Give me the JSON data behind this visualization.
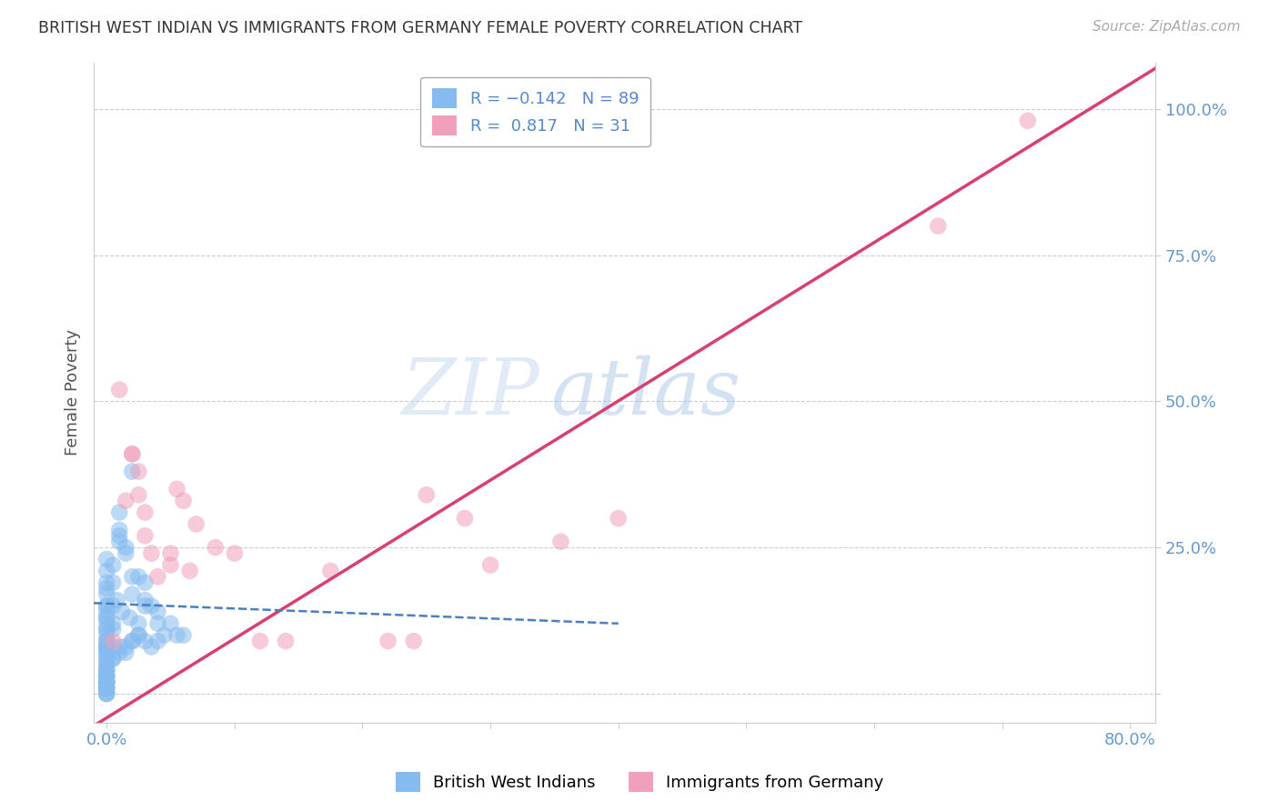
{
  "title": "BRITISH WEST INDIAN VS IMMIGRANTS FROM GERMANY FEMALE POVERTY CORRELATION CHART",
  "source": "Source: ZipAtlas.com",
  "ylabel_label": "Female Poverty",
  "xlim": [
    -0.01,
    0.82
  ],
  "ylim": [
    -0.05,
    1.08
  ],
  "x_ticks": [
    0.0,
    0.1,
    0.2,
    0.3,
    0.4,
    0.5,
    0.6,
    0.7,
    0.8
  ],
  "y_ticks": [
    0.0,
    0.25,
    0.5,
    0.75,
    1.0
  ],
  "y_tick_labels": [
    "",
    "25.0%",
    "50.0%",
    "75.0%",
    "100.0%"
  ],
  "watermark_zip": "ZIP",
  "watermark_atlas": "atlas",
  "blue_scatter_color": "#85bbf0",
  "pink_scatter_color": "#f0a0b8",
  "blue_line_color": "#4a7fc0",
  "pink_line_color": "#d84070",
  "axis_color": "#6699cc",
  "grid_color": "#cccccc",
  "title_color": "#333333",
  "source_color": "#aaaaaa",
  "background_color": "#ffffff",
  "blue_points_x": [
    0.0,
    0.0,
    0.0,
    0.0,
    0.0,
    0.0,
    0.0,
    0.0,
    0.0,
    0.0,
    0.0,
    0.0,
    0.0,
    0.0,
    0.0,
    0.0,
    0.0,
    0.0,
    0.0,
    0.0,
    0.0,
    0.0,
    0.0,
    0.0,
    0.0,
    0.0,
    0.0,
    0.0,
    0.0,
    0.0,
    0.0,
    0.0,
    0.0,
    0.0,
    0.0,
    0.005,
    0.005,
    0.005,
    0.005,
    0.005,
    0.005,
    0.008,
    0.01,
    0.01,
    0.01,
    0.01,
    0.01,
    0.012,
    0.015,
    0.015,
    0.015,
    0.018,
    0.02,
    0.02,
    0.02,
    0.02,
    0.025,
    0.025,
    0.025,
    0.03,
    0.03,
    0.03,
    0.03,
    0.035,
    0.035,
    0.04,
    0.04,
    0.04,
    0.045,
    0.05,
    0.055,
    0.06,
    0.0,
    0.0,
    0.0,
    0.0,
    0.0,
    0.0,
    0.0,
    0.0,
    0.0,
    0.005,
    0.005,
    0.01,
    0.015,
    0.02,
    0.025
  ],
  "blue_points_y": [
    0.18,
    0.15,
    0.14,
    0.13,
    0.12,
    0.11,
    0.1,
    0.09,
    0.09,
    0.08,
    0.08,
    0.07,
    0.07,
    0.06,
    0.06,
    0.05,
    0.05,
    0.04,
    0.04,
    0.03,
    0.03,
    0.02,
    0.02,
    0.01,
    0.01,
    0.0,
    0.0,
    0.0,
    0.01,
    0.02,
    0.03,
    0.02,
    0.01,
    0.02,
    0.03,
    0.22,
    0.19,
    0.15,
    0.12,
    0.08,
    0.06,
    0.16,
    0.31,
    0.28,
    0.27,
    0.26,
    0.08,
    0.14,
    0.25,
    0.24,
    0.07,
    0.13,
    0.38,
    0.2,
    0.17,
    0.09,
    0.2,
    0.12,
    0.1,
    0.19,
    0.16,
    0.15,
    0.09,
    0.15,
    0.08,
    0.14,
    0.12,
    0.09,
    0.1,
    0.12,
    0.1,
    0.1,
    0.23,
    0.21,
    0.19,
    0.17,
    0.15,
    0.13,
    0.11,
    0.08,
    0.04,
    0.11,
    0.06,
    0.07,
    0.08,
    0.09,
    0.1
  ],
  "pink_points_x": [
    0.005,
    0.01,
    0.015,
    0.02,
    0.02,
    0.025,
    0.025,
    0.03,
    0.03,
    0.035,
    0.04,
    0.05,
    0.05,
    0.055,
    0.06,
    0.065,
    0.07,
    0.085,
    0.1,
    0.12,
    0.14,
    0.175,
    0.22,
    0.24,
    0.25,
    0.28,
    0.3,
    0.355,
    0.4,
    0.65,
    0.72
  ],
  "pink_points_y": [
    0.09,
    0.52,
    0.33,
    0.41,
    0.41,
    0.38,
    0.34,
    0.31,
    0.27,
    0.24,
    0.2,
    0.24,
    0.22,
    0.35,
    0.33,
    0.21,
    0.29,
    0.25,
    0.24,
    0.09,
    0.09,
    0.21,
    0.09,
    0.09,
    0.34,
    0.3,
    0.22,
    0.26,
    0.3,
    0.8,
    0.98
  ],
  "pink_line_x0": -0.01,
  "pink_line_y0": -0.055,
  "pink_line_x1": 0.82,
  "pink_line_y1": 1.07,
  "blue_line_x0": -0.01,
  "blue_line_y0": 0.155,
  "blue_line_x1": 0.4,
  "blue_line_y1": 0.12
}
